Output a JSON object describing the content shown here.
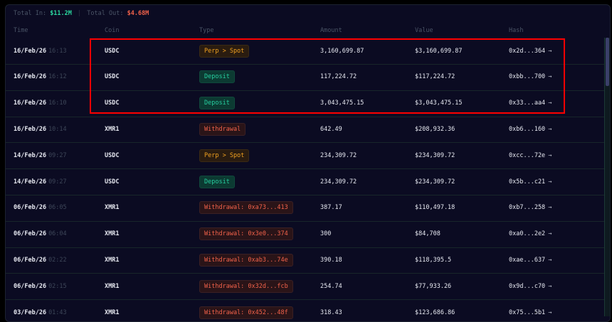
{
  "summary": {
    "total_in_label": "Total In:",
    "total_in": "$11.2M",
    "separator": "|",
    "total_out_label": "Total Out:",
    "total_out": "$4.68M"
  },
  "columns": [
    "Time",
    "Coin",
    "Type",
    "Amount",
    "Value",
    "Hash"
  ],
  "colors": {
    "deposit": "#27cfa0",
    "withdrawal": "#f0614a",
    "perp_spot": "#f0a020",
    "highlight": "#ff0000"
  },
  "rows": [
    {
      "date": "16/Feb/26",
      "time": "16:13",
      "coin": "USDC",
      "type": "Perp > Spot",
      "kind": "perp",
      "amount": "3,160,699.87",
      "value": "$3,160,699.87",
      "hash": "0x2d...364",
      "arrow": "→"
    },
    {
      "date": "16/Feb/26",
      "time": "16:12",
      "coin": "USDC",
      "type": "Deposit",
      "kind": "dep",
      "amount": "117,224.72",
      "value": "$117,224.72",
      "hash": "0xbb...700",
      "arrow": "→"
    },
    {
      "date": "16/Feb/26",
      "time": "16:10",
      "coin": "USDC",
      "type": "Deposit",
      "kind": "dep",
      "amount": "3,043,475.15",
      "value": "$3,043,475.15",
      "hash": "0x33...aa4",
      "arrow": "→"
    },
    {
      "date": "16/Feb/26",
      "time": "10:14",
      "coin": "XMR1",
      "type": "Withdrawal",
      "kind": "wd",
      "amount": "642.49",
      "value": "$208,932.36",
      "hash": "0xb6...160",
      "arrow": "→"
    },
    {
      "date": "14/Feb/26",
      "time": "09:27",
      "coin": "USDC",
      "type": "Perp > Spot",
      "kind": "perp",
      "amount": "234,309.72",
      "value": "$234,309.72",
      "hash": "0xcc...72e",
      "arrow": "→"
    },
    {
      "date": "14/Feb/26",
      "time": "09:27",
      "coin": "USDC",
      "type": "Deposit",
      "kind": "dep",
      "amount": "234,309.72",
      "value": "$234,309.72",
      "hash": "0x5b...c21",
      "arrow": "→"
    },
    {
      "date": "06/Feb/26",
      "time": "06:05",
      "coin": "XMR1",
      "type": "Withdrawal: 0xa73...413",
      "kind": "wd",
      "amount": "387.17",
      "value": "$110,497.18",
      "hash": "0xb7...258",
      "arrow": "→"
    },
    {
      "date": "06/Feb/26",
      "time": "06:04",
      "coin": "XMR1",
      "type": "Withdrawal: 0x3e0...374",
      "kind": "wd",
      "amount": "300",
      "value": "$84,708",
      "hash": "0xa0...2e2",
      "arrow": "→"
    },
    {
      "date": "06/Feb/26",
      "time": "02:22",
      "coin": "XMR1",
      "type": "Withdrawal: 0xab3...74e",
      "kind": "wd",
      "amount": "390.18",
      "value": "$118,395.5",
      "hash": "0xae...637",
      "arrow": "→"
    },
    {
      "date": "06/Feb/26",
      "time": "02:15",
      "coin": "XMR1",
      "type": "Withdrawal: 0x32d...fcb",
      "kind": "wd",
      "amount": "254.74",
      "value": "$77,933.26",
      "hash": "0x9d...c70",
      "arrow": "→"
    },
    {
      "date": "03/Feb/26",
      "time": "01:43",
      "coin": "XMR1",
      "type": "Withdrawal: 0x452...48f",
      "kind": "wd",
      "amount": "318.43",
      "value": "$123,686.86",
      "hash": "0x75...5b1",
      "arrow": "→"
    }
  ]
}
